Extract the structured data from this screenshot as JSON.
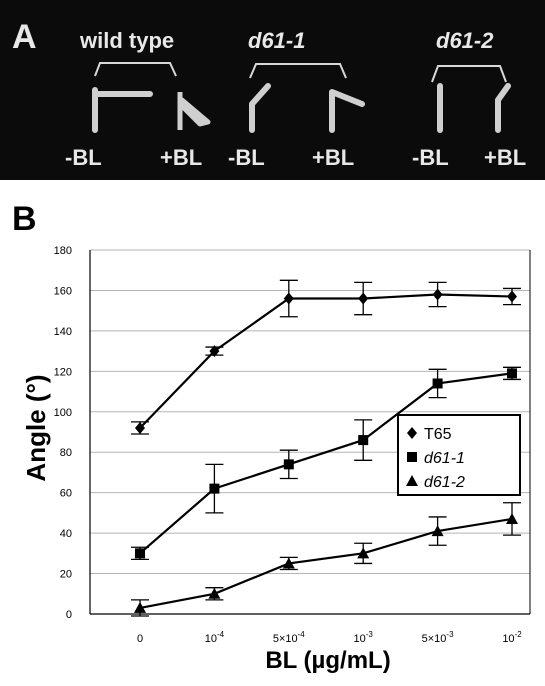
{
  "panel_a": {
    "letter": "A",
    "groups": [
      {
        "name": "wild type",
        "italic": false,
        "minus_label": "-BL",
        "plus_label": "+BL"
      },
      {
        "name": "d61-1",
        "italic": true,
        "minus_label": "-BL",
        "plus_label": "+BL"
      },
      {
        "name": "d61-2",
        "italic": true,
        "minus_label": "-BL",
        "plus_label": "+BL"
      }
    ]
  },
  "panel_b": {
    "letter": "B"
  },
  "chart_data": {
    "type": "line",
    "ylabel": "Angle (°)",
    "xlabel": "BL (µg/mL)",
    "ylim": [
      0,
      180
    ],
    "yticks": [
      0,
      20,
      40,
      60,
      80,
      100,
      120,
      140,
      160,
      180
    ],
    "grid": "horizontal",
    "legend_position": "right-middle",
    "categories": [
      "0",
      "10-4",
      "5×10-4",
      "10-3",
      "5×10-3",
      "10-2"
    ],
    "tick_labels": [
      {
        "base": "0",
        "exp": ""
      },
      {
        "base": "10",
        "exp": "-4"
      },
      {
        "base": "5×10",
        "exp": "-4"
      },
      {
        "base": "10",
        "exp": "-3"
      },
      {
        "base": "5×10",
        "exp": "-3"
      },
      {
        "base": "10",
        "exp": "-2"
      }
    ],
    "series": [
      {
        "name": "T65",
        "italic": false,
        "marker": "diamond",
        "values": [
          92,
          130,
          156,
          156,
          158,
          157
        ],
        "errors": [
          3,
          2,
          9,
          8,
          6,
          4
        ]
      },
      {
        "name": "d61-1",
        "italic": true,
        "marker": "square",
        "values": [
          30,
          62,
          74,
          86,
          114,
          119
        ],
        "errors": [
          3,
          12,
          7,
          10,
          7,
          3
        ]
      },
      {
        "name": "d61-2",
        "italic": true,
        "marker": "triangle",
        "values": [
          3,
          10,
          25,
          30,
          41,
          47
        ],
        "errors": [
          4,
          3,
          3,
          5,
          7,
          8
        ]
      }
    ]
  }
}
